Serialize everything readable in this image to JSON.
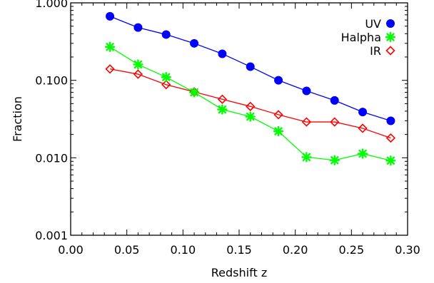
{
  "chart_data": {
    "type": "line",
    "title": "",
    "xlabel": "Redshift z",
    "ylabel": "Fraction",
    "xlim": [
      0.0,
      0.3
    ],
    "ylim": [
      0.001,
      1.0
    ],
    "yscale": "log",
    "grid": false,
    "legend_position": "top-right",
    "x_ticks": [
      0.0,
      0.05,
      0.1,
      0.15,
      0.2,
      0.25,
      0.3
    ],
    "x_tick_labels": [
      "0.00",
      "0.05",
      "0.10",
      "0.15",
      "0.20",
      "0.25",
      "0.30"
    ],
    "y_ticks": [
      0.001,
      0.01,
      0.1,
      1.0
    ],
    "y_tick_labels": [
      "0.001",
      "0.010",
      "0.100",
      "1.000"
    ],
    "x": [
      0.035,
      0.06,
      0.085,
      0.11,
      0.135,
      0.16,
      0.185,
      0.21,
      0.235,
      0.26,
      0.285
    ],
    "series": [
      {
        "name": "UV",
        "color": "#0000ff",
        "marker": "filled-circle",
        "values": [
          0.67,
          0.48,
          0.39,
          0.3,
          0.22,
          0.15,
          0.1,
          0.073,
          0.055,
          0.039,
          0.03
        ]
      },
      {
        "name": "Halpha",
        "color": "#00ff00",
        "marker": "asterisk",
        "values": [
          0.27,
          0.16,
          0.11,
          0.07,
          0.042,
          0.034,
          0.022,
          0.0102,
          0.0093,
          0.0113,
          0.0092
        ]
      },
      {
        "name": "IR",
        "color": "#ff0000",
        "marker": "open-diamond",
        "values": [
          0.14,
          0.12,
          0.088,
          0.071,
          0.057,
          0.046,
          0.036,
          0.029,
          0.029,
          0.024,
          0.018
        ]
      }
    ]
  }
}
